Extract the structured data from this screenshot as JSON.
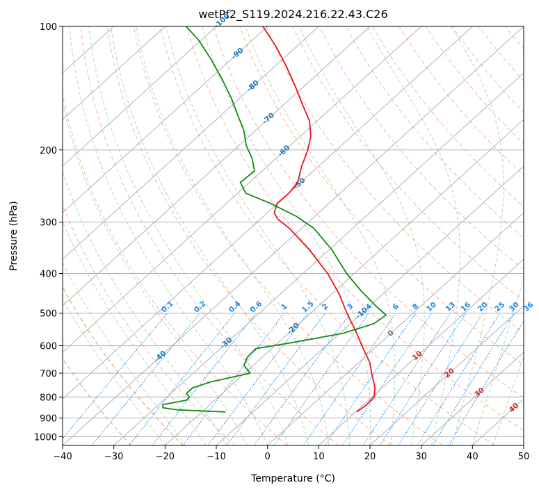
{
  "chart_data": {
    "type": "line",
    "title": "wetPf2_S119.2024.216.22.43.C26",
    "xlabel": "Temperature (°C)",
    "ylabel": "Pressure (hPa)",
    "xlim": [
      -40,
      50
    ],
    "ylim": [
      1050,
      100
    ],
    "y_scale": "log",
    "x_ticks": [
      -40,
      -30,
      -20,
      -10,
      0,
      10,
      20,
      30,
      40,
      50
    ],
    "y_ticks": [
      100,
      200,
      300,
      400,
      500,
      600,
      700,
      800,
      900,
      1000
    ],
    "grid": true,
    "series": [
      {
        "role": "temperature",
        "color": "#e8141c",
        "points": [
          {
            "p": 870,
            "t": 10.2
          },
          {
            "p": 840,
            "t": 10.6
          },
          {
            "p": 800,
            "t": 10.4
          },
          {
            "p": 760,
            "t": 8.6
          },
          {
            "p": 700,
            "t": 4.8
          },
          {
            "p": 660,
            "t": 2.2
          },
          {
            "p": 600,
            "t": -3.0
          },
          {
            "p": 550,
            "t": -7.6
          },
          {
            "p": 500,
            "t": -12.9
          },
          {
            "p": 450,
            "t": -18.4
          },
          {
            "p": 400,
            "t": -25.2
          },
          {
            "p": 350,
            "t": -33.9
          },
          {
            "p": 310,
            "t": -42.5
          },
          {
            "p": 295,
            "t": -46.6
          },
          {
            "p": 285,
            "t": -48.6
          },
          {
            "p": 270,
            "t": -50.1
          },
          {
            "p": 255,
            "t": -50.0
          },
          {
            "p": 240,
            "t": -50.6
          },
          {
            "p": 220,
            "t": -53.2
          },
          {
            "p": 200,
            "t": -55.6
          },
          {
            "p": 185,
            "t": -58.0
          },
          {
            "p": 170,
            "t": -61.5
          },
          {
            "p": 155,
            "t": -66.4
          },
          {
            "p": 140,
            "t": -71.7
          },
          {
            "p": 125,
            "t": -77.8
          },
          {
            "p": 112,
            "t": -84.0
          },
          {
            "p": 100,
            "t": -90.9
          }
        ]
      },
      {
        "role": "dewpoint",
        "color": "#118a11",
        "points": [
          {
            "p": 870,
            "t": -15.4
          },
          {
            "p": 860,
            "t": -25.2
          },
          {
            "p": 850,
            "t": -28.5
          },
          {
            "p": 835,
            "t": -29.2
          },
          {
            "p": 815,
            "t": -25.6
          },
          {
            "p": 800,
            "t": -25.6
          },
          {
            "p": 785,
            "t": -27.0
          },
          {
            "p": 760,
            "t": -27.0
          },
          {
            "p": 735,
            "t": -24.7
          },
          {
            "p": 700,
            "t": -18.9
          },
          {
            "p": 670,
            "t": -21.8
          },
          {
            "p": 640,
            "t": -22.9
          },
          {
            "p": 610,
            "t": -23.1
          },
          {
            "p": 590,
            "t": -17.4
          },
          {
            "p": 560,
            "t": -9.4
          },
          {
            "p": 530,
            "t": -5.4
          },
          {
            "p": 505,
            "t": -4.9
          },
          {
            "p": 480,
            "t": -8.8
          },
          {
            "p": 440,
            "t": -15.1
          },
          {
            "p": 400,
            "t": -21.5
          },
          {
            "p": 350,
            "t": -29.5
          },
          {
            "p": 310,
            "t": -37.7
          },
          {
            "p": 290,
            "t": -43.7
          },
          {
            "p": 270,
            "t": -51.4
          },
          {
            "p": 255,
            "t": -58.4
          },
          {
            "p": 240,
            "t": -61.8
          },
          {
            "p": 225,
            "t": -61.5
          },
          {
            "p": 210,
            "t": -64.6
          },
          {
            "p": 195,
            "t": -68.6
          },
          {
            "p": 180,
            "t": -72.1
          },
          {
            "p": 165,
            "t": -76.6
          },
          {
            "p": 150,
            "t": -81.5
          },
          {
            "p": 135,
            "t": -87.3
          },
          {
            "p": 120,
            "t": -94.1
          },
          {
            "p": 108,
            "t": -100.5
          },
          {
            "p": 100,
            "t": -105.9
          }
        ]
      }
    ],
    "isotherm_labels": [
      -100,
      -90,
      -80,
      -70,
      -60,
      -50,
      -40,
      -30,
      -20,
      -10
    ],
    "mixing_ratio_labels": [
      "0.1",
      "0.2",
      "0.4",
      "0.6",
      "1",
      "1.5",
      "2",
      "3",
      "4",
      "6",
      "8",
      "10",
      "13",
      "16",
      "20",
      "25",
      "30",
      "36"
    ],
    "theta_labels": [
      "0",
      "10",
      "20",
      "30",
      "40"
    ]
  },
  "colors": {
    "temperature": "#e8141c",
    "dewpoint": "#118a11",
    "isotherm_label": "#1f77b4",
    "mixing_ratio": "#1e88e5",
    "theta_label": "#d62728",
    "theta_zero_label": "#777777",
    "grid": "#b0b0b0",
    "dry_adiabat": "#f4a582",
    "moist_adiabat": "#9ccc9c"
  }
}
